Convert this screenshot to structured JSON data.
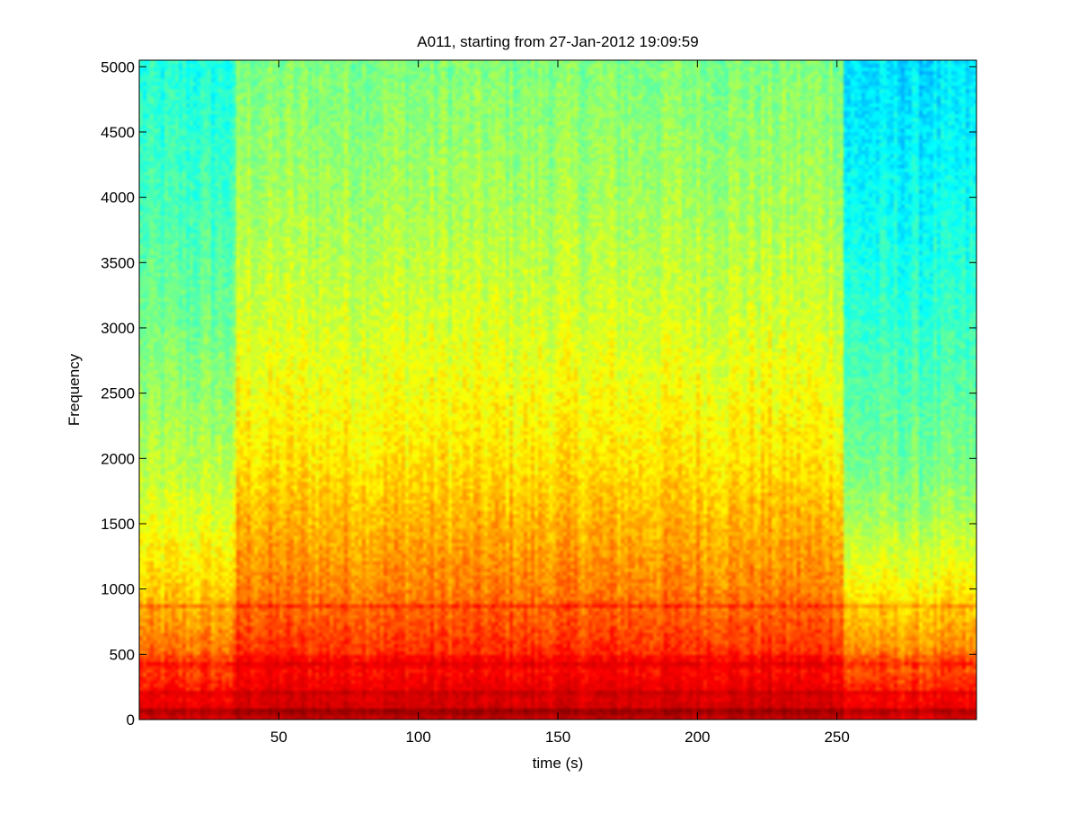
{
  "chart_data": {
    "type": "heatmap",
    "title": "A011, starting from 27-Jan-2012 19:09:59",
    "xlabel": "time (s)",
    "ylabel": "Frequency",
    "xlim": [
      0,
      300
    ],
    "ylim": [
      0,
      5050
    ],
    "xticks": [
      50,
      100,
      150,
      200,
      250
    ],
    "yticks": [
      0,
      500,
      1000,
      1500,
      2000,
      2500,
      3000,
      3500,
      4000,
      4500,
      5000
    ],
    "grid": false,
    "colormap": "jet",
    "colormap_stops": [
      "#00007f",
      "#0000ff",
      "#00ffff",
      "#ffff00",
      "#ff0000",
      "#7f0000"
    ],
    "time_segments": [
      {
        "start": 0,
        "end": 35,
        "level_offset": -0.08
      },
      {
        "start": 35,
        "end": 253,
        "level_offset": 0.0
      },
      {
        "start": 253,
        "end": 300,
        "level_offset": -0.13
      }
    ],
    "bands": [
      {
        "frequency": 60,
        "strength": 0.12
      },
      {
        "frequency": 200,
        "strength": 0.06
      },
      {
        "frequency": 420,
        "strength": 0.07
      },
      {
        "frequency": 470,
        "strength": 0.04
      },
      {
        "frequency": 870,
        "strength": 0.05
      }
    ],
    "intensity_profile": [
      {
        "frequency": 0,
        "level": 0.9
      },
      {
        "frequency": 200,
        "level": 0.84
      },
      {
        "frequency": 500,
        "level": 0.77
      },
      {
        "frequency": 1000,
        "level": 0.7
      },
      {
        "frequency": 1500,
        "level": 0.66
      },
      {
        "frequency": 2000,
        "level": 0.62
      },
      {
        "frequency": 3000,
        "level": 0.57
      },
      {
        "frequency": 4000,
        "level": 0.53
      },
      {
        "frequency": 5050,
        "level": 0.5
      }
    ]
  }
}
